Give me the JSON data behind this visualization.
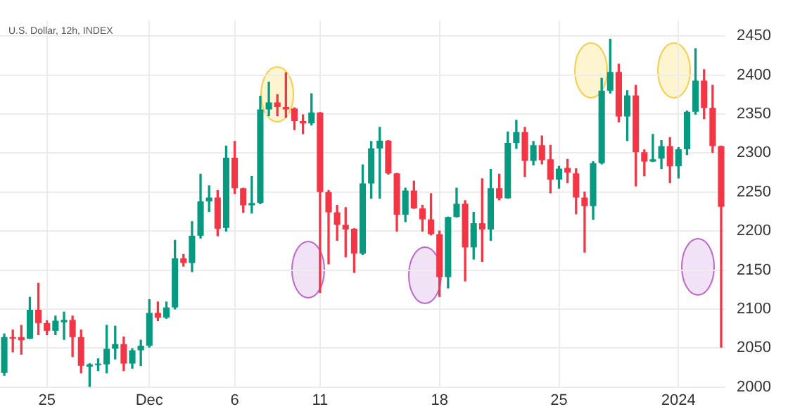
{
  "chart_data": {
    "type": "candlestick",
    "title": "U.S. Dollar, 12h, INDEX",
    "categories": [
      null,
      null,
      null,
      null,
      null,
      "25",
      null,
      null,
      null,
      null,
      null,
      null,
      null,
      null,
      null,
      null,
      null,
      "Dec",
      null,
      null,
      null,
      null,
      null,
      null,
      null,
      null,
      null,
      "6",
      null,
      null,
      null,
      null,
      null,
      null,
      null,
      null,
      null,
      "11",
      null,
      null,
      null,
      null,
      null,
      null,
      null,
      null,
      null,
      null,
      null,
      null,
      null,
      "18",
      null,
      null,
      null,
      null,
      null,
      null,
      null,
      null,
      null,
      null,
      null,
      null,
      null,
      "25",
      null,
      null,
      null,
      null,
      null,
      null,
      null,
      null,
      null,
      null,
      null,
      null,
      null,
      "2024",
      null,
      null,
      null,
      null,
      null
    ],
    "ohlc": [
      [
        2018,
        2068,
        2015,
        2064
      ],
      [
        2064,
        2073,
        2045,
        2062
      ],
      [
        2064,
        2079,
        2042,
        2060
      ],
      [
        2062,
        2115,
        2062,
        2099
      ],
      [
        2099,
        2133,
        2067,
        2082
      ],
      [
        2082,
        2085,
        2067,
        2072
      ],
      [
        2072,
        2091,
        2067,
        2085
      ],
      [
        2083,
        2096,
        2061,
        2086
      ],
      [
        2086,
        2091,
        2039,
        2064
      ],
      [
        2064,
        2073,
        2018,
        2027
      ],
      [
        2026,
        2030,
        2000,
        2029
      ],
      [
        2028,
        2036,
        2021,
        2030
      ],
      [
        2029,
        2079,
        2018,
        2049
      ],
      [
        2049,
        2078,
        2036,
        2055
      ],
      [
        2055,
        2064,
        2021,
        2030
      ],
      [
        2030,
        2049,
        2024,
        2047
      ],
      [
        2047,
        2060,
        2027,
        2053
      ],
      [
        2053,
        2112,
        2051,
        2095
      ],
      [
        2095,
        2109,
        2085,
        2089
      ],
      [
        2089,
        2109,
        2088,
        2102
      ],
      [
        2102,
        2188,
        2100,
        2165
      ],
      [
        2165,
        2170,
        2155,
        2159
      ],
      [
        2159,
        2212,
        2148,
        2194
      ],
      [
        2194,
        2273,
        2191,
        2238
      ],
      [
        2238,
        2258,
        2225,
        2243
      ],
      [
        2243,
        2252,
        2194,
        2203
      ],
      [
        2204,
        2309,
        2200,
        2294
      ],
      [
        2294,
        2315,
        2248,
        2255
      ],
      [
        2255,
        2255,
        2224,
        2233
      ],
      [
        2233,
        2270,
        2223,
        2236
      ],
      [
        2236,
        2373,
        2235,
        2356
      ],
      [
        2356,
        2391,
        2348,
        2365
      ],
      [
        2365,
        2375,
        2348,
        2359
      ],
      [
        2359,
        2403,
        2346,
        2356
      ],
      [
        2357,
        2358,
        2330,
        2341
      ],
      [
        2341,
        2349,
        2325,
        2338
      ],
      [
        2338,
        2376,
        2336,
        2352
      ],
      [
        2352,
        2352,
        2121,
        2250
      ],
      [
        2250,
        2252,
        2158,
        2224
      ],
      [
        2224,
        2233,
        2188,
        2208
      ],
      [
        2208,
        2230,
        2167,
        2202
      ],
      [
        2203,
        2203,
        2147,
        2171
      ],
      [
        2171,
        2285,
        2170,
        2261
      ],
      [
        2261,
        2315,
        2242,
        2306
      ],
      [
        2306,
        2333,
        2242,
        2316
      ],
      [
        2316,
        2316,
        2273,
        2274
      ],
      [
        2274,
        2274,
        2200,
        2221
      ],
      [
        2221,
        2255,
        2212,
        2252
      ],
      [
        2252,
        2264,
        2229,
        2229
      ],
      [
        2229,
        2233,
        2200,
        2215
      ],
      [
        2215,
        2248,
        2195,
        2196
      ],
      [
        2196,
        2200,
        2116,
        2141
      ],
      [
        2141,
        2218,
        2127,
        2218
      ],
      [
        2218,
        2255,
        2218,
        2235
      ],
      [
        2235,
        2239,
        2136,
        2179
      ],
      [
        2179,
        2224,
        2164,
        2210
      ],
      [
        2210,
        2267,
        2161,
        2202
      ],
      [
        2202,
        2279,
        2188,
        2255
      ],
      [
        2255,
        2273,
        2240,
        2242
      ],
      [
        2242,
        2327,
        2242,
        2313
      ],
      [
        2313,
        2342,
        2306,
        2327
      ],
      [
        2327,
        2333,
        2270,
        2290
      ],
      [
        2290,
        2315,
        2285,
        2310
      ],
      [
        2310,
        2322,
        2286,
        2291
      ],
      [
        2292,
        2310,
        2249,
        2266
      ],
      [
        2266,
        2283,
        2255,
        2280
      ],
      [
        2281,
        2292,
        2262,
        2275
      ],
      [
        2274,
        2280,
        2222,
        2243
      ],
      [
        2243,
        2250,
        2173,
        2232
      ],
      [
        2232,
        2289,
        2215,
        2287
      ],
      [
        2287,
        2396,
        2286,
        2380
      ],
      [
        2380,
        2446,
        2377,
        2404
      ],
      [
        2404,
        2414,
        2340,
        2347
      ],
      [
        2347,
        2380,
        2316,
        2374
      ],
      [
        2374,
        2387,
        2258,
        2301
      ],
      [
        2301,
        2304,
        2271,
        2289
      ],
      [
        2289,
        2324,
        2289,
        2292
      ],
      [
        2293,
        2316,
        2280,
        2309
      ],
      [
        2309,
        2320,
        2262,
        2283
      ],
      [
        2283,
        2307,
        2268,
        2305
      ],
      [
        2305,
        2354,
        2298,
        2353
      ],
      [
        2353,
        2434,
        2350,
        2393
      ],
      [
        2393,
        2407,
        2344,
        2358
      ],
      [
        2358,
        2387,
        2301,
        2309
      ],
      [
        2309,
        2309,
        2051,
        2231
      ]
    ],
    "colors": [
      "#089981",
      "#f23645",
      "#f23645",
      "#089981",
      "#f23645",
      "#f23645",
      "#089981",
      "#089981",
      "#f23645",
      "#f23645",
      "#089981",
      "#089981",
      "#089981",
      "#089981",
      "#f23645",
      "#089981",
      "#089981",
      "#089981",
      "#f23645",
      "#089981",
      "#089981",
      "#f23645",
      "#089981",
      "#089981",
      "#089981",
      "#f23645",
      "#089981",
      "#f23645",
      "#f23645",
      "#089981",
      "#089981",
      "#089981",
      "#f23645",
      "#f23645",
      "#f23645",
      "#f23645",
      "#089981",
      "#f23645",
      "#f23645",
      "#f23645",
      "#f23645",
      "#f23645",
      "#089981",
      "#089981",
      "#089981",
      "#f23645",
      "#f23645",
      "#089981",
      "#f23645",
      "#f23645",
      "#f23645",
      "#f23645",
      "#089981",
      "#089981",
      "#f23645",
      "#089981",
      "#f23645",
      "#089981",
      "#f23645",
      "#089981",
      "#089981",
      "#f23645",
      "#089981",
      "#f23645",
      "#f23645",
      "#089981",
      "#f23645",
      "#f23645",
      "#f23645",
      "#089981",
      "#089981",
      "#089981",
      "#f23645",
      "#089981",
      "#f23645",
      "#f23645",
      "#089981",
      "#089981",
      "#f23645",
      "#089981",
      "#089981",
      "#089981",
      "#f23645",
      "#f23645",
      "#f23645"
    ],
    "ylim": [
      2000,
      2470
    ],
    "yticks": [
      2000,
      2050,
      2100,
      2150,
      2200,
      2250,
      2300,
      2350,
      2400,
      2450
    ],
    "grid": true
  }
}
